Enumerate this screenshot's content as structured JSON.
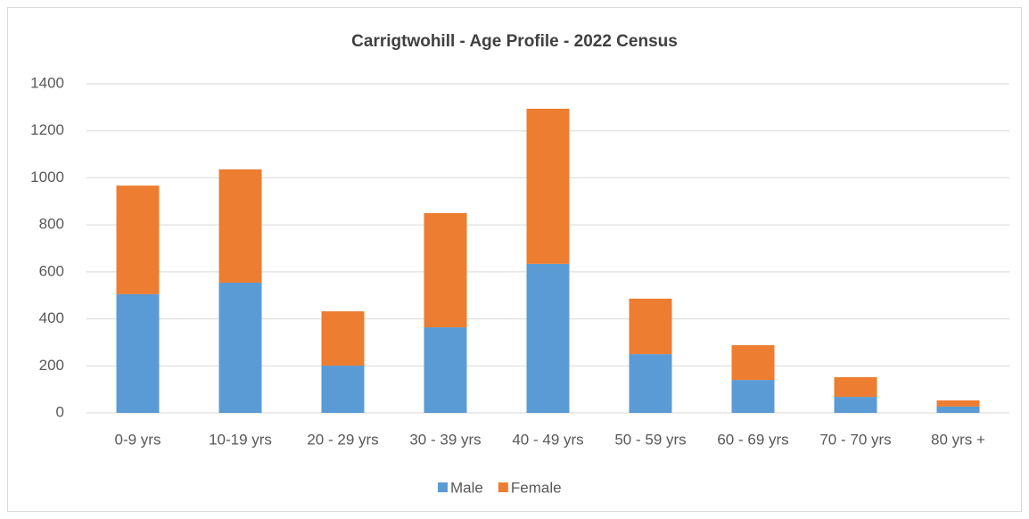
{
  "chart_data": {
    "type": "stacked_bar",
    "title": "Carrigtwohill - Age Profile - 2022 Census",
    "categories": [
      "0-9 yrs",
      "10-19 yrs",
      "20 - 29 yrs",
      "30 - 39 yrs",
      "40 - 49 yrs",
      "50 - 59 yrs",
      "60 - 69 yrs",
      "70 - 70 yrs",
      "80 yrs +"
    ],
    "series": [
      {
        "name": "Male",
        "color": "#5b9bd5",
        "values": [
          505,
          554,
          201,
          364,
          634,
          250,
          140,
          68,
          27
        ]
      },
      {
        "name": "Female",
        "color": "#ed7d31",
        "values": [
          462,
          482,
          231,
          486,
          660,
          236,
          148,
          84,
          26
        ]
      }
    ],
    "ylim": [
      0,
      1400
    ],
    "yticks": [
      0,
      200,
      400,
      600,
      800,
      1000,
      1200,
      1400
    ],
    "grid": true,
    "legend": "bottom"
  }
}
